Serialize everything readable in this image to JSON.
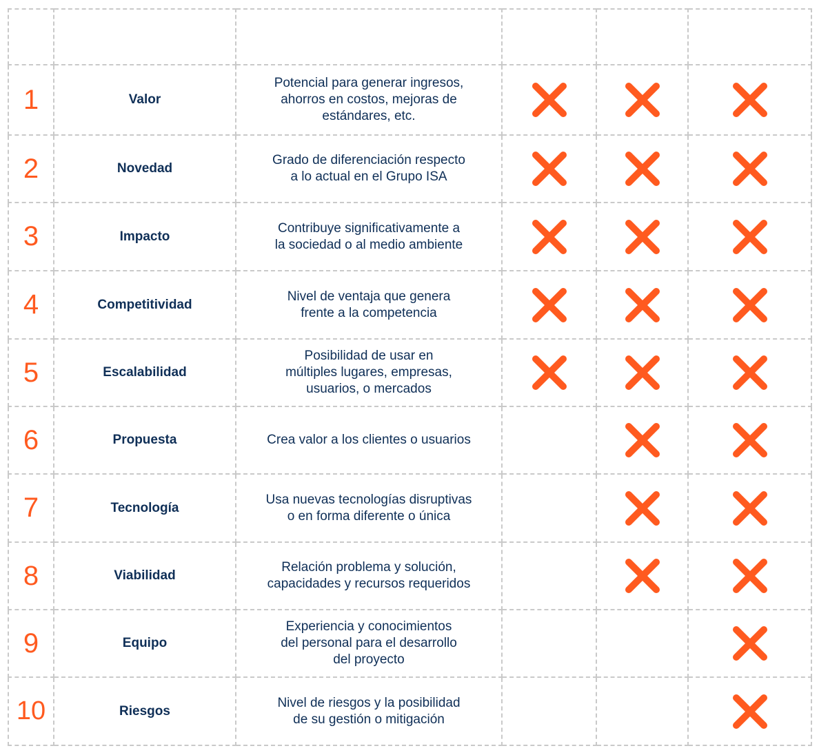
{
  "accent_color": "#ff5a1f",
  "text_color": "#0f2f57",
  "mark_icon": "x-mark-icon",
  "rows": [
    {
      "number": "1",
      "criterion": "Valor",
      "description": "Potencial para generar ingresos,\nahorros en costos, mejoras de\nestándares, etc.",
      "marks": [
        true,
        true,
        true
      ]
    },
    {
      "number": "2",
      "criterion": "Novedad",
      "description": "Grado de diferenciación respecto\na lo actual en el Grupo ISA",
      "marks": [
        true,
        true,
        true
      ]
    },
    {
      "number": "3",
      "criterion": "Impacto",
      "description": "Contribuye significativamente a\nla sociedad o al medio ambiente",
      "marks": [
        true,
        true,
        true
      ]
    },
    {
      "number": "4",
      "criterion": "Competitividad",
      "description": "Nivel de ventaja que genera\nfrente a la competencia",
      "marks": [
        true,
        true,
        true
      ]
    },
    {
      "number": "5",
      "criterion": "Escalabilidad",
      "description": "Posibilidad de usar en\nmúltiples lugares, empresas,\nusuarios, o mercados",
      "marks": [
        true,
        true,
        true
      ]
    },
    {
      "number": "6",
      "criterion": "Propuesta",
      "description": "Crea valor a los clientes o usuarios",
      "marks": [
        false,
        true,
        true
      ]
    },
    {
      "number": "7",
      "criterion": "Tecnología",
      "description": "Usa nuevas tecnologías disruptivas\no en forma diferente o única",
      "marks": [
        false,
        true,
        true
      ]
    },
    {
      "number": "8",
      "criterion": "Viabilidad",
      "description": "Relación problema y solución,\ncapacidades y recursos requeridos",
      "marks": [
        false,
        true,
        true
      ]
    },
    {
      "number": "9",
      "criterion": "Equipo",
      "description": "Experiencia y conocimientos\ndel personal para el desarrollo\ndel proyecto",
      "marks": [
        false,
        false,
        true
      ]
    },
    {
      "number": "10",
      "criterion": "Riesgos",
      "description": "Nivel de riesgos y la posibilidad\nde su gestión o mitigación",
      "marks": [
        false,
        false,
        true
      ]
    }
  ]
}
